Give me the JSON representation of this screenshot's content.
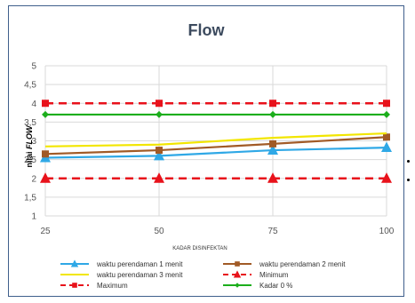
{
  "chart_data": {
    "type": "line",
    "title": "Flow",
    "xlabel": "KADAR DISINFEKTAN",
    "ylabel_prefix": "nilai ",
    "ylabel_emph": "FLOW",
    "x": [
      25,
      50,
      75,
      100
    ],
    "ylim": [
      1,
      5
    ],
    "yticks": [
      "1",
      "1,5",
      "2",
      "2,5",
      "3",
      "3,5",
      "4",
      "4,5",
      "5"
    ],
    "grid": true,
    "legend_position": "bottom",
    "series": [
      {
        "name": "waktu perendaman 1 menit",
        "values": [
          2.55,
          2.6,
          2.75,
          2.82
        ],
        "color": "#2fa8e6",
        "marker": "triangle",
        "dash": false
      },
      {
        "name": "waktu perendaman 2 menit",
        "values": [
          2.65,
          2.75,
          2.92,
          3.1
        ],
        "color": "#a15a26",
        "marker": "square",
        "dash": false
      },
      {
        "name": "waktu perendaman 3 menit",
        "values": [
          2.85,
          2.9,
          3.08,
          3.2
        ],
        "color": "#f2e600",
        "marker": "none",
        "dash": false
      },
      {
        "name": "Minimum",
        "values": [
          2.0,
          2.0,
          2.0,
          2.0
        ],
        "color": "#e8121b",
        "marker": "triangle",
        "dash": true
      },
      {
        "name": "Maximum",
        "values": [
          4.0,
          4.0,
          4.0,
          4.0
        ],
        "color": "#e8121b",
        "marker": "square",
        "dash": true
      },
      {
        "name": "Kadar 0 %",
        "values": [
          3.7,
          3.7,
          3.7,
          3.7
        ],
        "color": "#1cae1c",
        "marker": "diamond",
        "dash": false
      }
    ]
  }
}
